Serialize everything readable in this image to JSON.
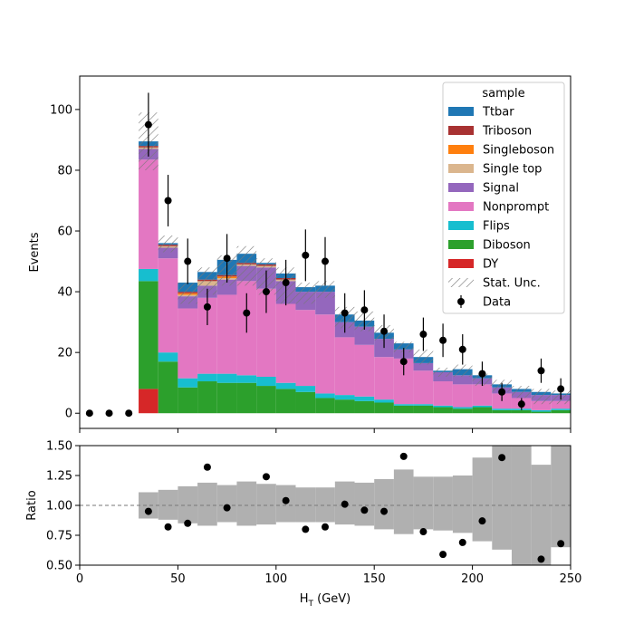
{
  "chart_data": {
    "type": "bar",
    "stacked": true,
    "x_bin_edges": [
      0,
      10,
      20,
      30,
      40,
      50,
      60,
      70,
      80,
      90,
      100,
      110,
      120,
      130,
      140,
      150,
      160,
      170,
      180,
      190,
      200,
      210,
      220,
      230,
      240,
      250
    ],
    "xlabel": "H",
    "xlabel_sub": "T",
    "xlabel_unit": " (GeV)",
    "ylabel": "Events",
    "xlim": [
      0,
      250
    ],
    "ylim": [
      -5,
      111
    ],
    "yticks": [
      0,
      20,
      40,
      60,
      80,
      100
    ],
    "xticks": [
      0,
      50,
      100,
      150,
      200,
      250
    ],
    "legend_title": "sample",
    "legend_placement": "top-right",
    "legend_order": [
      "Ttbar",
      "Triboson",
      "Singleboson",
      "Single top",
      "Signal",
      "Nonprompt",
      "Flips",
      "Diboson",
      "DY"
    ],
    "series": [
      {
        "name": "DY",
        "color": "#d62728",
        "values": [
          0,
          0,
          0,
          8,
          0,
          0,
          0,
          0,
          0,
          0,
          0,
          0,
          0,
          0,
          0,
          0,
          0,
          0,
          0,
          0,
          0,
          0,
          0,
          0,
          0
        ]
      },
      {
        "name": "Diboson",
        "color": "#2ca02c",
        "values": [
          0,
          0,
          0,
          35.5,
          17,
          8.5,
          10.5,
          10,
          10,
          9,
          8,
          7,
          5,
          4.5,
          4,
          3.5,
          2.5,
          2.5,
          2,
          1.5,
          2,
          1,
          1,
          0.5,
          1
        ]
      },
      {
        "name": "Flips",
        "color": "#17becf",
        "values": [
          0,
          0,
          0,
          4,
          3,
          3,
          2.5,
          3,
          2.5,
          3,
          2,
          2,
          1.5,
          1.5,
          1.5,
          1,
          0.5,
          0.5,
          0.5,
          0.5,
          0.5,
          0.5,
          0.5,
          0.5,
          0.5
        ]
      },
      {
        "name": "Nonprompt",
        "color": "#e377c2",
        "values": [
          0,
          0,
          0,
          36,
          31,
          23,
          25,
          26,
          31,
          29,
          26,
          25,
          26,
          19,
          17,
          14,
          15,
          11,
          8,
          7.5,
          7,
          5,
          3.5,
          3,
          2.5
        ]
      },
      {
        "name": "Signal",
        "color": "#9467bd",
        "values": [
          0,
          0,
          0,
          3.5,
          3.5,
          4,
          4,
          5,
          5,
          7,
          7.5,
          6,
          7.5,
          5,
          6,
          6,
          3,
          2.5,
          3,
          3,
          2,
          2,
          2,
          2,
          2
        ]
      },
      {
        "name": "Single top",
        "color": "#dbb68e",
        "values": [
          0,
          0,
          0,
          0.5,
          0.5,
          0.5,
          1.5,
          0.5,
          0.5,
          0.5,
          0.5,
          0,
          0,
          0,
          0,
          0,
          0,
          0,
          0,
          0,
          0,
          0,
          0,
          0,
          0
        ]
      },
      {
        "name": "Singleboson",
        "color": "#ff7f0e",
        "values": [
          0,
          0,
          0,
          0,
          0,
          0.5,
          0,
          0.5,
          0,
          0,
          0,
          0,
          0,
          0,
          0,
          0,
          0,
          0,
          0,
          0,
          0,
          0,
          0,
          0,
          0
        ]
      },
      {
        "name": "Triboson",
        "color": "#a83232",
        "values": [
          0,
          0,
          0,
          0.5,
          0.5,
          0.5,
          0.5,
          0.5,
          0.5,
          0.5,
          0.5,
          0,
          0,
          0,
          0,
          0,
          0,
          0,
          0,
          0,
          0,
          0,
          0,
          0,
          0
        ]
      },
      {
        "name": "Ttbar",
        "color": "#1f77b4",
        "values": [
          0,
          0,
          0,
          1.5,
          0.5,
          3,
          2.5,
          5,
          3,
          0.5,
          1.5,
          1.5,
          2,
          2.5,
          2,
          2,
          2,
          2,
          0.5,
          2,
          1,
          1,
          1,
          1,
          0.5
        ]
      }
    ],
    "stat_unc": {
      "name": "Stat. Unc.",
      "total_up": [
        0,
        0,
        0,
        99,
        58.5,
        43,
        48,
        52,
        55,
        51,
        48,
        43,
        43.5,
        35,
        33.5,
        29,
        23.5,
        21,
        15,
        16,
        13,
        11,
        9,
        8,
        7.5
      ],
      "total_down": [
        0,
        0,
        0,
        80,
        53,
        36,
        39,
        42,
        42,
        39,
        36,
        36,
        38,
        28,
        27,
        24,
        20,
        16,
        12,
        12,
        9,
        7,
        5,
        3,
        3
      ]
    },
    "data": {
      "name": "Data",
      "x": [
        5,
        15,
        25,
        35,
        45,
        55,
        65,
        75,
        85,
        95,
        105,
        115,
        125,
        135,
        145,
        155,
        165,
        175,
        185,
        195,
        205,
        215,
        225,
        235,
        245
      ],
      "y": [
        0,
        0,
        0,
        95,
        70,
        50,
        35,
        51,
        33,
        40,
        43,
        52,
        50,
        33,
        34,
        27,
        17,
        26,
        24,
        21,
        13,
        7,
        3,
        14,
        8
      ],
      "err": [
        0,
        0,
        0,
        10.5,
        8.5,
        7.5,
        6,
        8,
        6.5,
        7,
        7.5,
        8.5,
        8,
        6.5,
        6.5,
        5.5,
        4.5,
        5.5,
        5.5,
        5,
        4,
        3,
        2,
        4,
        3.5
      ]
    },
    "ratio_panel": {
      "ylabel": "Ratio",
      "ylim": [
        0.5,
        1.5
      ],
      "yticks": [
        "0.50",
        "0.75",
        "1.00",
        "1.25",
        "1.50"
      ],
      "reference_line": 1.0,
      "band_up": [
        null,
        null,
        null,
        1.11,
        1.13,
        1.16,
        1.19,
        1.17,
        1.2,
        1.18,
        1.17,
        1.15,
        1.15,
        1.2,
        1.19,
        1.22,
        1.3,
        1.24,
        1.24,
        1.25,
        1.4,
        1.5,
        1.5,
        1.34,
        1.5
      ],
      "band_down": [
        null,
        null,
        null,
        0.89,
        0.88,
        0.85,
        0.83,
        0.86,
        0.83,
        0.84,
        0.86,
        0.86,
        0.86,
        0.84,
        0.83,
        0.8,
        0.76,
        0.8,
        0.79,
        0.77,
        0.7,
        0.63,
        0.5,
        0.5,
        0.65
      ],
      "points_x": [
        35,
        45,
        55,
        65,
        75,
        95,
        105,
        115,
        125,
        135,
        145,
        155,
        165,
        175,
        185,
        195,
        205,
        215,
        235,
        245
      ],
      "points_y": [
        0.95,
        0.82,
        0.85,
        1.32,
        0.98,
        1.24,
        1.04,
        0.8,
        0.82,
        1.01,
        0.96,
        0.95,
        1.41,
        0.78,
        0.59,
        0.69,
        0.87,
        1.4,
        0.55,
        0.68
      ]
    }
  }
}
